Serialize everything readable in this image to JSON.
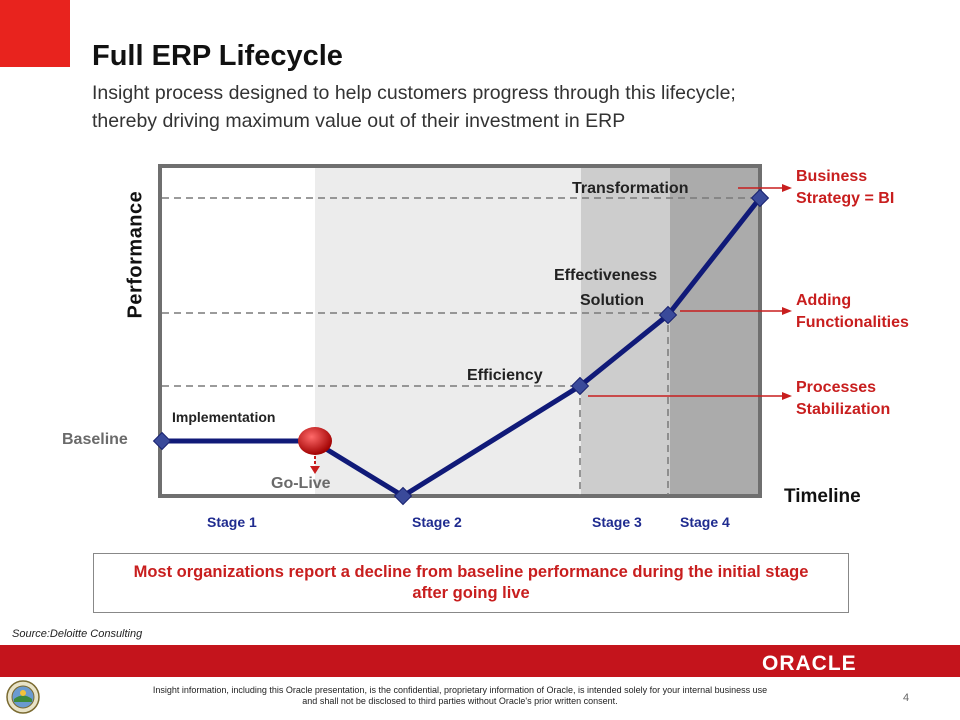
{
  "title": "Full ERP Lifecycle",
  "subtitle": [
    "Insight process designed to help customers progress through this lifecycle;",
    "thereby driving maximum value out of their investment in ERP"
  ],
  "diagram": {
    "y_axis_label": "Performance",
    "x_axis_label": "Timeline",
    "baseline_label": "Baseline",
    "go_live_label": "Go-Live",
    "point_labels": {
      "implementation": "Implementation",
      "efficiency": "Efficiency",
      "effectiveness": [
        "Effectiveness",
        "Solution"
      ],
      "transformation": "Transformation"
    },
    "stages": [
      "Stage 1",
      "Stage 2",
      "Stage 3",
      "Stage 4"
    ],
    "right_labels": [
      [
        "Business",
        "Strategy = BI"
      ],
      [
        "Adding",
        "Functionalities"
      ],
      [
        "Processes",
        "Stabilization"
      ]
    ]
  },
  "callout": "Most organizations report a decline from baseline performance during the initial stage after going live",
  "source": "Source:Deloitte Consulting",
  "footer": {
    "logo_text": "ORACLE",
    "disclaimer": "Insight information, including this Oracle presentation, is the confidential, proprietary information of Oracle, is intended solely for your internal business use and shall not be disclosed to third parties without Oracle's prior written consent.",
    "page_number": "4"
  },
  "colors": {
    "accent_red": "#c81e1e",
    "line_navy": "#101a78",
    "label_blue": "#1f2b8f"
  }
}
